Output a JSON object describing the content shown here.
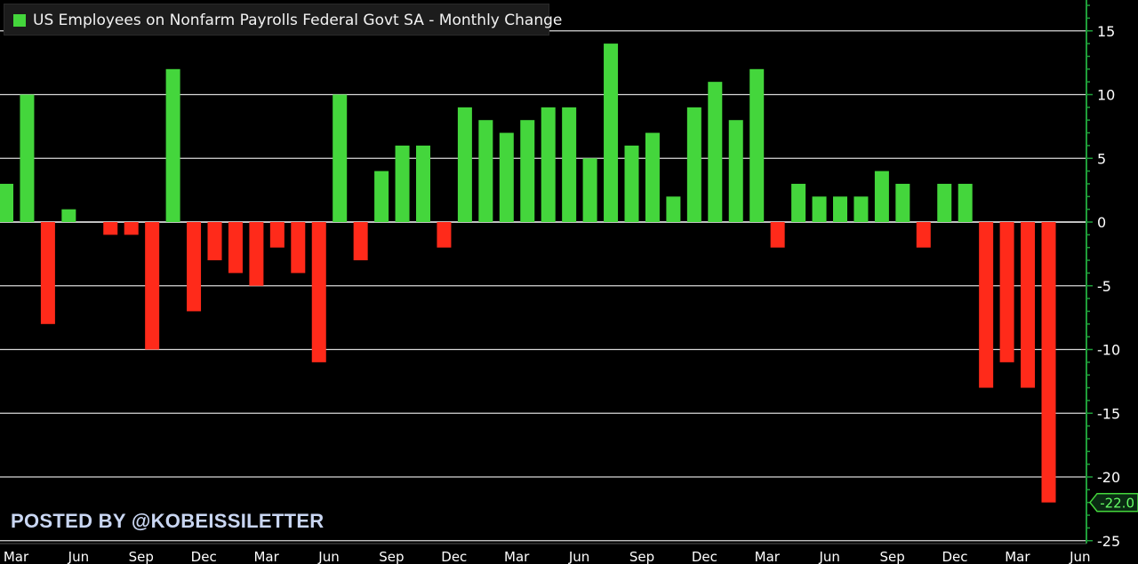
{
  "legend": {
    "label": "US Employees on Nonfarm Payrolls Federal Govt SA - Monthly Change"
  },
  "watermark": "POSTED BY @KOBEISSILETTER",
  "colors": {
    "positive": "#44d63c",
    "negative": "#ff2a1a",
    "axis": "#1f9e3a",
    "grid": "#d8d8d8",
    "callout": "#44d63c"
  },
  "chart_data": {
    "type": "bar",
    "title": "US Employees on Nonfarm Payrolls Federal Govt SA - Monthly Change",
    "xlabel": "",
    "ylabel": "",
    "ylim": [
      -25,
      17
    ],
    "y_ticks": [
      15,
      10,
      5,
      0,
      -5,
      -10,
      -15,
      -20,
      -25
    ],
    "grid": true,
    "legend_position": "top-left",
    "x_tick_labels": [
      "Mar",
      "Jun",
      "Sep",
      "Dec",
      "Mar",
      "Jun",
      "Sep",
      "Dec",
      "Mar",
      "Jun",
      "Sep",
      "Dec",
      "Mar",
      "Jun",
      "Sep",
      "Dec",
      "Mar",
      "Jun"
    ],
    "series": [
      {
        "values": [
          3,
          10,
          -8,
          1,
          0,
          -1,
          -1,
          -10,
          12,
          -7,
          -3,
          -4,
          -5,
          -2,
          -4,
          -11,
          10,
          -3,
          4,
          6,
          6,
          -2,
          9,
          8,
          7,
          8,
          9,
          9,
          5,
          14,
          6,
          7,
          2,
          9,
          11,
          8,
          12,
          -2,
          3,
          2,
          2,
          2,
          4,
          3,
          -2,
          3,
          3,
          -13,
          -11,
          -13,
          -22
        ]
      }
    ],
    "last_value_label": "-22.0"
  }
}
